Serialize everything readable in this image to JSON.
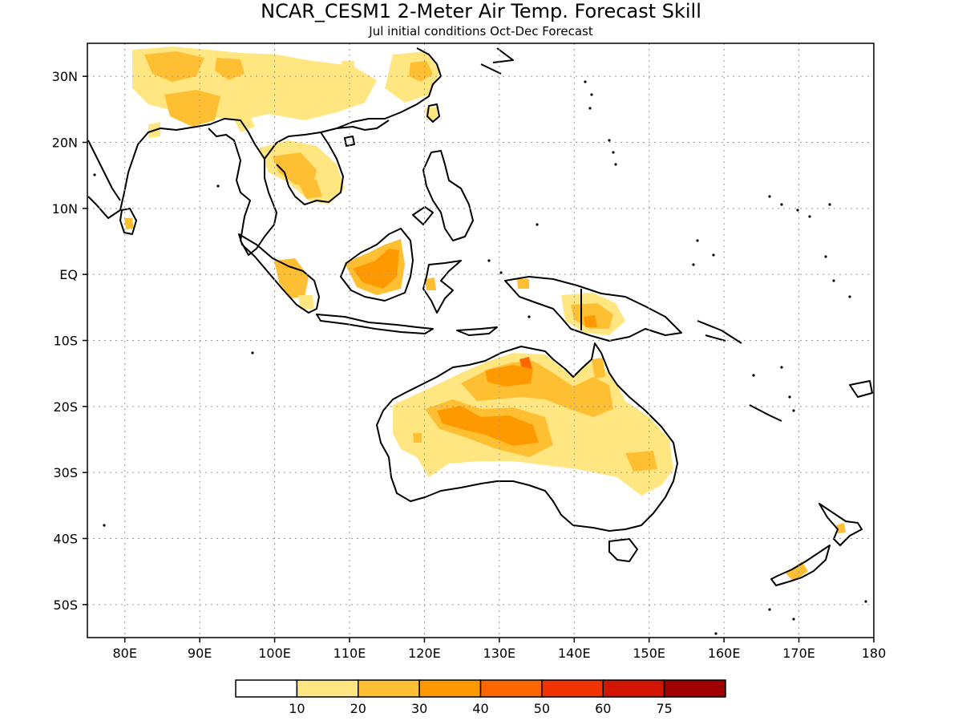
{
  "title": "NCAR_CESM1 2-Meter Air Temp. Forecast Skill",
  "subtitle": "Jul initial conditions  Oct-Dec Forecast",
  "map": {
    "lon_range": [
      75,
      180
    ],
    "lat_range": [
      -55,
      35
    ],
    "lat_ticks": [
      {
        "value": 30,
        "label": "30N"
      },
      {
        "value": 20,
        "label": "20N"
      },
      {
        "value": 10,
        "label": "10N"
      },
      {
        "value": 0,
        "label": "EQ"
      },
      {
        "value": -10,
        "label": "10S"
      },
      {
        "value": -20,
        "label": "20S"
      },
      {
        "value": -30,
        "label": "30S"
      },
      {
        "value": -40,
        "label": "40S"
      },
      {
        "value": -50,
        "label": "50S"
      }
    ],
    "lon_ticks": [
      {
        "value": 80,
        "label": "80E"
      },
      {
        "value": 90,
        "label": "90E"
      },
      {
        "value": 100,
        "label": "100E"
      },
      {
        "value": 110,
        "label": "110E"
      },
      {
        "value": 120,
        "label": "120E"
      },
      {
        "value": 130,
        "label": "130E"
      },
      {
        "value": 140,
        "label": "140E"
      },
      {
        "value": 150,
        "label": "150E"
      },
      {
        "value": 160,
        "label": "160E"
      },
      {
        "value": 170,
        "label": "170E"
      },
      {
        "value": 180,
        "label": "180"
      }
    ],
    "grid": "dotted"
  },
  "colorbar": {
    "colors": [
      "#ffffff",
      "#ffe680",
      "#ffbf33",
      "#ff9900",
      "#ff6600",
      "#f03300",
      "#d21400",
      "#a00000"
    ],
    "labels": [
      "10",
      "20",
      "30",
      "40",
      "50",
      "60",
      "75"
    ]
  },
  "skill_regions": {
    "light": "#ffe680",
    "mid": "#ffbf33",
    "strong": "#ff9900",
    "peak": "#ff6600"
  }
}
